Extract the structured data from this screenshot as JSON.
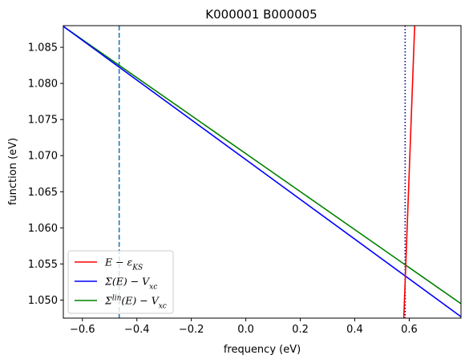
{
  "chart_data": {
    "type": "line",
    "title": "K000001 B000005",
    "xlabel": "frequency (eV)",
    "ylabel": "function (eV)",
    "xlim": [
      -0.67,
      0.79
    ],
    "ylim": [
      1.0475,
      1.088
    ],
    "x_ticks": [
      -0.6,
      -0.4,
      -0.2,
      0.0,
      0.2,
      0.4,
      0.6
    ],
    "x_tick_labels": [
      "−0.6",
      "−0.4",
      "−0.2",
      "0.0",
      "0.2",
      "0.4",
      "0.6"
    ],
    "y_ticks": [
      1.05,
      1.055,
      1.06,
      1.065,
      1.07,
      1.075,
      1.08,
      1.085
    ],
    "y_tick_labels": [
      "1.050",
      "1.055",
      "1.060",
      "1.065",
      "1.070",
      "1.075",
      "1.080",
      "1.085"
    ],
    "grid": false,
    "legend_position": "lower-left",
    "series": [
      {
        "name": "E − ε_KS",
        "legend_main": "E − ε",
        "legend_sub": "KS",
        "legend_sup": "",
        "color": "#ff0000",
        "x": [
          0.58,
          0.62
        ],
        "y": [
          1.0475,
          1.088
        ]
      },
      {
        "name": "Σ(E) − V_xc",
        "legend_main": "Σ(E) − V",
        "legend_sub": "xc",
        "legend_sup": "",
        "color": "#0000ff",
        "x": [
          -0.67,
          0.79
        ],
        "y": [
          1.0879,
          1.0477
        ]
      },
      {
        "name": "Σ^lin(E) − V_xc",
        "legend_main": "Σ",
        "legend_sup": "lin",
        "legend_after": "(E) − V",
        "legend_sub": "xc",
        "color": "#008000",
        "x": [
          -0.67,
          0.79
        ],
        "y": [
          1.0879,
          1.0495
        ]
      }
    ],
    "vlines": [
      {
        "x": -0.465,
        "style": "dashed",
        "color": "#1f77b4"
      },
      {
        "x": 0.585,
        "style": "dotted",
        "color": "#00008b"
      }
    ]
  }
}
